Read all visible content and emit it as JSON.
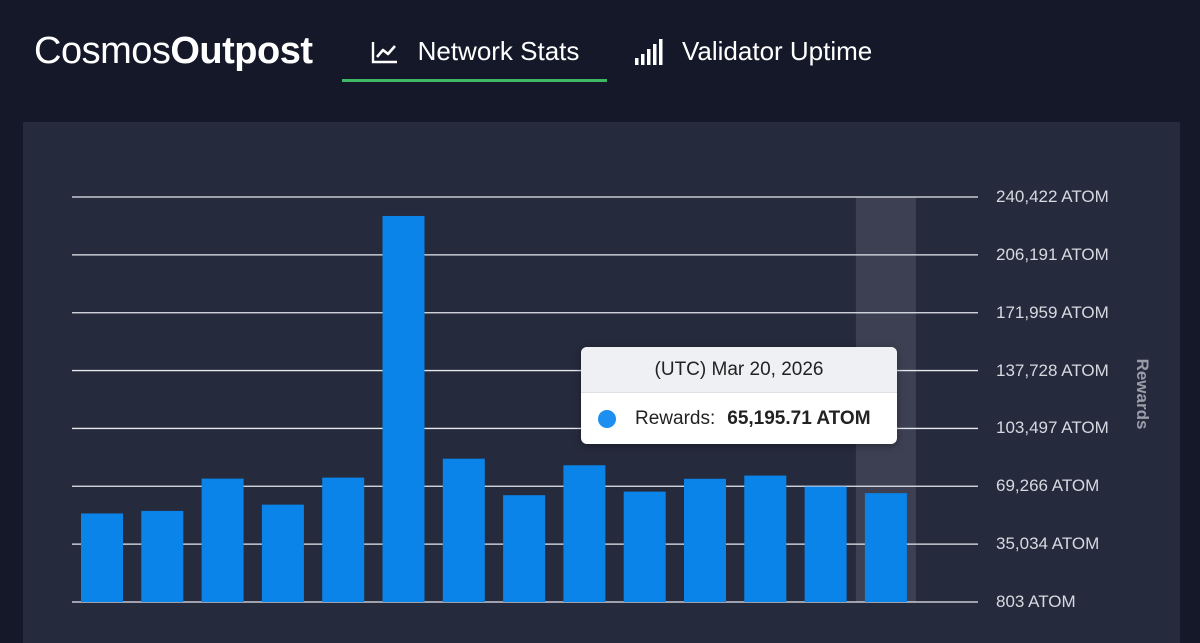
{
  "brand": {
    "prefix": "Cosmos",
    "suffix": "Outpost"
  },
  "tabs": [
    {
      "label": "Network Stats",
      "icon": "line-chart-icon",
      "active": true
    },
    {
      "label": "Validator Uptime",
      "icon": "signal-bars-icon",
      "active": false
    }
  ],
  "colors": {
    "bar": "#0a84e8",
    "grid": "#e6e8ee",
    "highlight": "#3c4052",
    "accent": "#3fb866"
  },
  "tooltip": {
    "date": "(UTC) Mar 20, 2026",
    "label": "Rewards:",
    "value": "65,195.71 ATOM"
  },
  "chart_data": {
    "type": "bar",
    "title": "",
    "xlabel": "",
    "ylabel": "Rewards",
    "ylim": [
      803,
      240422
    ],
    "yticks": [
      803,
      35034,
      69266,
      103497,
      137728,
      171959,
      206191,
      240422
    ],
    "ytick_labels": [
      "803 ATOM",
      "35,034 ATOM",
      "69,266 ATOM",
      "103,497 ATOM",
      "137,728 ATOM",
      "171,959 ATOM",
      "206,191 ATOM",
      "240,422 ATOM"
    ],
    "series": [
      {
        "name": "Rewards",
        "values": [
          53200,
          54700,
          73800,
          58400,
          74400,
          229200,
          85600,
          64000,
          81700,
          66100,
          73700,
          75600,
          69100,
          65195.71
        ]
      }
    ],
    "highlight_index": 13
  }
}
